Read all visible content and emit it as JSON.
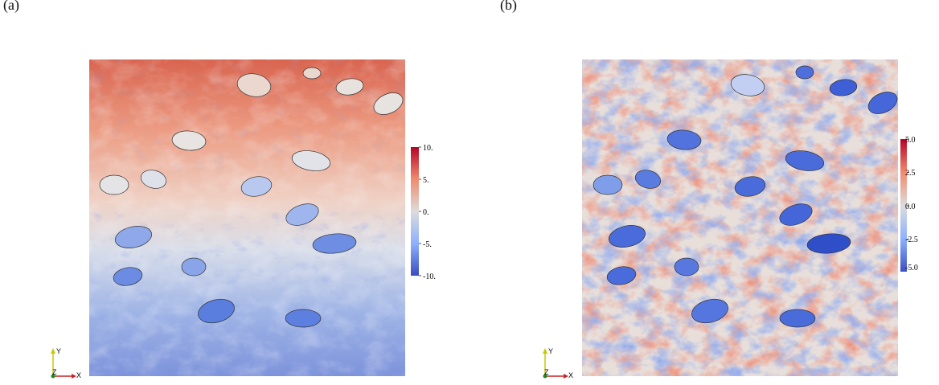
{
  "panels": [
    {
      "label": "(a)",
      "colorbar": {
        "ticks": [
          "10.",
          "5.",
          "0.",
          "-5.",
          "-10."
        ],
        "values": [
          10,
          5,
          0,
          -5,
          -10
        ],
        "range": [
          -10,
          10
        ],
        "colormap": "coolwarm"
      },
      "axes_triad": {
        "y": "Y",
        "z": "Z",
        "x": "X"
      }
    },
    {
      "label": "(b)",
      "colorbar": {
        "ticks": [
          "5.0",
          "2.5",
          "0.0",
          "-2.5",
          "-5.0"
        ],
        "values": [
          5,
          2.5,
          0,
          -2.5,
          -5
        ],
        "range": [
          -5,
          5
        ],
        "colormap": "coolwarm"
      },
      "axes_triad": {
        "y": "Y",
        "z": "Z",
        "x": "X"
      }
    }
  ],
  "colors": {
    "warm": "#d73027",
    "mid": "#e8e6e4",
    "cool": "#3b4cc0"
  }
}
